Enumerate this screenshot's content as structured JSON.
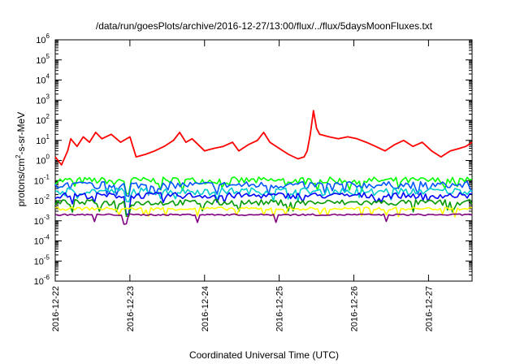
{
  "chart_data": {
    "type": "line",
    "title": "/data/run/goesPlots/archive/2016-12-27/13:00/flux/../flux/5daysMoonFluxes.txt",
    "xlabel": "Coordinated Universal Time (UTC)",
    "ylabel": {
      "base": "protons/cm",
      "sup": "2",
      "rest": "-s-sr-MeV"
    },
    "y_scale": "log",
    "ylim": [
      1e-06,
      1000000.0
    ],
    "xlim": [
      "2016-12-22",
      "2016-12-27T14:00"
    ],
    "grid": false,
    "legend": "none",
    "x_ticks": [
      "2016-12-22",
      "2016-12-23",
      "2016-12-24",
      "2016-12-25",
      "2016-12-26",
      "2016-12-27"
    ],
    "y_ticks": [
      {
        "base": "10",
        "exp": "-6"
      },
      {
        "base": "10",
        "exp": "-5"
      },
      {
        "base": "10",
        "exp": "-4"
      },
      {
        "base": "10",
        "exp": "-3"
      },
      {
        "base": "10",
        "exp": "-2"
      },
      {
        "base": "10",
        "exp": "-1"
      },
      {
        "base": "10",
        "exp": "0"
      },
      {
        "base": "10",
        "exp": "1"
      },
      {
        "base": "10",
        "exp": "2"
      },
      {
        "base": "10",
        "exp": "3"
      },
      {
        "base": "10",
        "exp": "4"
      },
      {
        "base": "10",
        "exp": "5"
      },
      {
        "base": "10",
        "exp": "6"
      }
    ],
    "series": [
      {
        "color": "#ff0000",
        "points": [
          [
            "2016-12-22T00:00",
            1.5
          ],
          [
            "2016-12-22T02:00",
            0.6
          ],
          [
            "2016-12-22T04:00",
            3
          ],
          [
            "2016-12-22T05:00",
            12
          ],
          [
            "2016-12-22T07:00",
            5
          ],
          [
            "2016-12-22T09:00",
            15
          ],
          [
            "2016-12-22T11:00",
            8
          ],
          [
            "2016-12-22T13:00",
            25
          ],
          [
            "2016-12-22T15:00",
            12
          ],
          [
            "2016-12-22T18:00",
            20
          ],
          [
            "2016-12-22T21:00",
            8
          ],
          [
            "2016-12-23T00:00",
            15
          ],
          [
            "2016-12-23T02:00",
            1.5
          ],
          [
            "2016-12-23T05:00",
            2
          ],
          [
            "2016-12-23T08:00",
            3
          ],
          [
            "2016-12-23T11:00",
            5
          ],
          [
            "2016-12-23T14:00",
            10
          ],
          [
            "2016-12-23T16:00",
            25
          ],
          [
            "2016-12-23T18:00",
            8
          ],
          [
            "2016-12-23T20:00",
            12
          ],
          [
            "2016-12-23T22:00",
            6
          ],
          [
            "2016-12-24T00:00",
            3
          ],
          [
            "2016-12-24T03:00",
            4
          ],
          [
            "2016-12-24T06:00",
            5
          ],
          [
            "2016-12-24T09:00",
            8
          ],
          [
            "2016-12-24T11:00",
            3
          ],
          [
            "2016-12-24T14:00",
            6
          ],
          [
            "2016-12-24T17:00",
            10
          ],
          [
            "2016-12-24T19:00",
            25
          ],
          [
            "2016-12-24T21:00",
            8
          ],
          [
            "2016-12-25T00:00",
            4
          ],
          [
            "2016-12-25T03:00",
            2
          ],
          [
            "2016-12-25T06:00",
            1.2
          ],
          [
            "2016-12-25T08:00",
            1.5
          ],
          [
            "2016-12-25T09:00",
            3
          ],
          [
            "2016-12-25T10:00",
            20
          ],
          [
            "2016-12-25T11:00",
            300
          ],
          [
            "2016-12-25T12:00",
            40
          ],
          [
            "2016-12-25T13:00",
            20
          ],
          [
            "2016-12-25T16:00",
            15
          ],
          [
            "2016-12-25T19:00",
            12
          ],
          [
            "2016-12-25T22:00",
            15
          ],
          [
            "2016-12-26T01:00",
            12
          ],
          [
            "2016-12-26T04:00",
            8
          ],
          [
            "2016-12-26T07:00",
            5
          ],
          [
            "2016-12-26T10:00",
            3
          ],
          [
            "2016-12-26T13:00",
            6
          ],
          [
            "2016-12-26T16:00",
            10
          ],
          [
            "2016-12-26T19:00",
            5
          ],
          [
            "2016-12-26T22:00",
            8
          ],
          [
            "2016-12-27T01:00",
            3
          ],
          [
            "2016-12-27T04:00",
            1.5
          ],
          [
            "2016-12-27T07:00",
            3
          ],
          [
            "2016-12-27T10:00",
            4
          ],
          [
            "2016-12-27T12:00",
            5
          ],
          [
            "2016-12-27T14:00",
            8
          ]
        ]
      },
      {
        "color": "#00ff00",
        "level": 0.1,
        "spread": 0.35
      },
      {
        "color": "#0055ff",
        "level": 0.06,
        "spread": 0.35
      },
      {
        "color": "#00cccc",
        "level": 0.03,
        "spread": 0.35
      },
      {
        "color": "#0000ff",
        "level": 0.018,
        "spread": 0.3
      },
      {
        "color": "#009900",
        "level": 0.008,
        "spread": 0.3
      },
      {
        "color": "#ffff00",
        "level": 0.004,
        "spread": 0.15
      },
      {
        "color": "#800080",
        "level": 0.002,
        "spread": 0.08
      }
    ]
  }
}
